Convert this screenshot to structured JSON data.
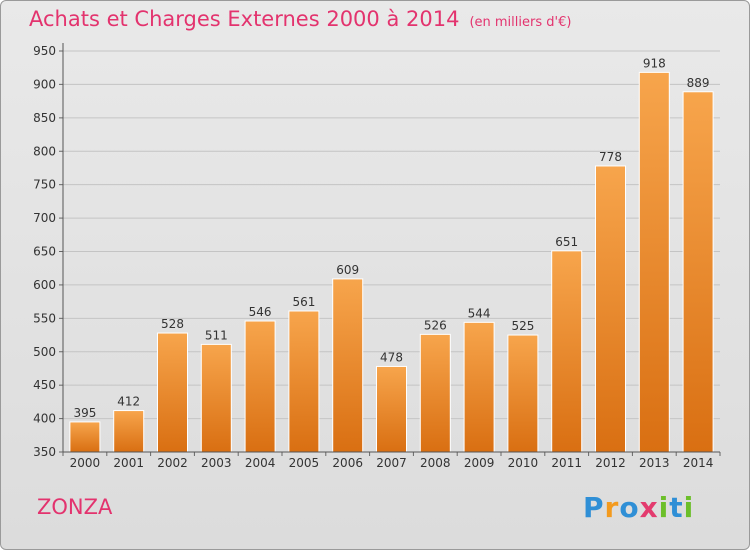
{
  "title": "Achats et Charges Externes 2000 à 2014",
  "unit_label": "(en milliers d'€)",
  "commune": "ZONZA",
  "brand": {
    "letters": [
      {
        "ch": "P",
        "color": "#2f8fd6"
      },
      {
        "ch": "r",
        "color": "#f39a1e"
      },
      {
        "ch": "o",
        "color": "#2f8fd6"
      },
      {
        "ch": "x",
        "color": "#e33b6e"
      },
      {
        "ch": "i",
        "color": "#6cbf2a"
      },
      {
        "ch": "t",
        "color": "#2f8fd6"
      },
      {
        "ch": "i",
        "color": "#6cbf2a"
      }
    ]
  },
  "chart_data": {
    "type": "bar",
    "title": "Achats et Charges Externes 2000 à 2014",
    "subtitle": "(en milliers d'€)",
    "xlabel": "",
    "ylabel": "",
    "categories": [
      "2000",
      "2001",
      "2002",
      "2003",
      "2004",
      "2005",
      "2006",
      "2007",
      "2008",
      "2009",
      "2010",
      "2011",
      "2012",
      "2013",
      "2014"
    ],
    "values": [
      395,
      412,
      528,
      511,
      546,
      561,
      609,
      478,
      526,
      544,
      525,
      651,
      778,
      918,
      889
    ],
    "ylim": [
      350,
      950
    ],
    "yticks": [
      350,
      400,
      450,
      500,
      550,
      600,
      650,
      700,
      750,
      800,
      850,
      900,
      950
    ],
    "grid": true,
    "bar_color": "#f08a2c"
  }
}
